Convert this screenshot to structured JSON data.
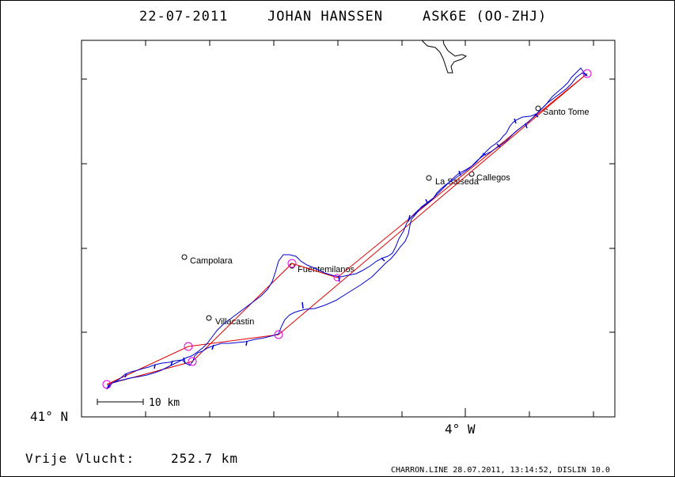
{
  "header": {
    "date": "22-07-2011",
    "pilot": "JOHAN HANSSEN",
    "glider": "ASK6E (OO-ZHJ)"
  },
  "axes": {
    "lat_label": "41° N",
    "lon_label": "4° W"
  },
  "scale_bar": {
    "label": "10 km"
  },
  "places": [
    {
      "name": "Santo Tome"
    },
    {
      "name": "Callegos"
    },
    {
      "name": "La Salseda"
    },
    {
      "name": "Campolara"
    },
    {
      "name": "Fuentemilanos"
    },
    {
      "name": "Villacastin"
    }
  ],
  "footer": {
    "distance_label": "Vrije Vlucht:",
    "distance_value": "252.7 km",
    "program": "CHARRON.LINE 28.07.2011, 13:14:52, DISLIN 10.0"
  },
  "colors": {
    "track": "#0000d0",
    "task": "#e00000",
    "turnpoint": "#e000e0",
    "ink": "#000000"
  }
}
